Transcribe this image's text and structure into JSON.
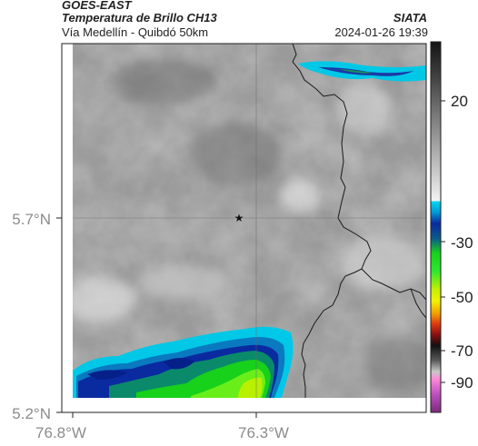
{
  "header": {
    "satellite": "GOES-EAST",
    "product": "Temperatura de Brillo CH13",
    "region": "Vía Medellín - Quibdó 50km",
    "organization": "SIATA",
    "datetime": "2024-01-26 19:39"
  },
  "map": {
    "lat_ticks": [
      "5.7°N",
      "5.2°N"
    ],
    "lon_ticks": [
      "76.8°W",
      "76.3°W"
    ],
    "marker": "star",
    "gridlines": true
  },
  "colorbar": {
    "tick_labels": [
      "20",
      "-30",
      "-50",
      "-70",
      "-90"
    ],
    "colors": {
      "top_dark": "#1a1a1a",
      "gray_light": "#f2f2f2",
      "cyan": "#00c8e6",
      "blue": "#0a2aa0",
      "green": "#17d11a",
      "yellow": "#f2f200",
      "orange": "#f07800",
      "red": "#d21919",
      "dark": "#202020",
      "pink": "#ff66cc",
      "magenta": "#9e2a9e"
    }
  }
}
